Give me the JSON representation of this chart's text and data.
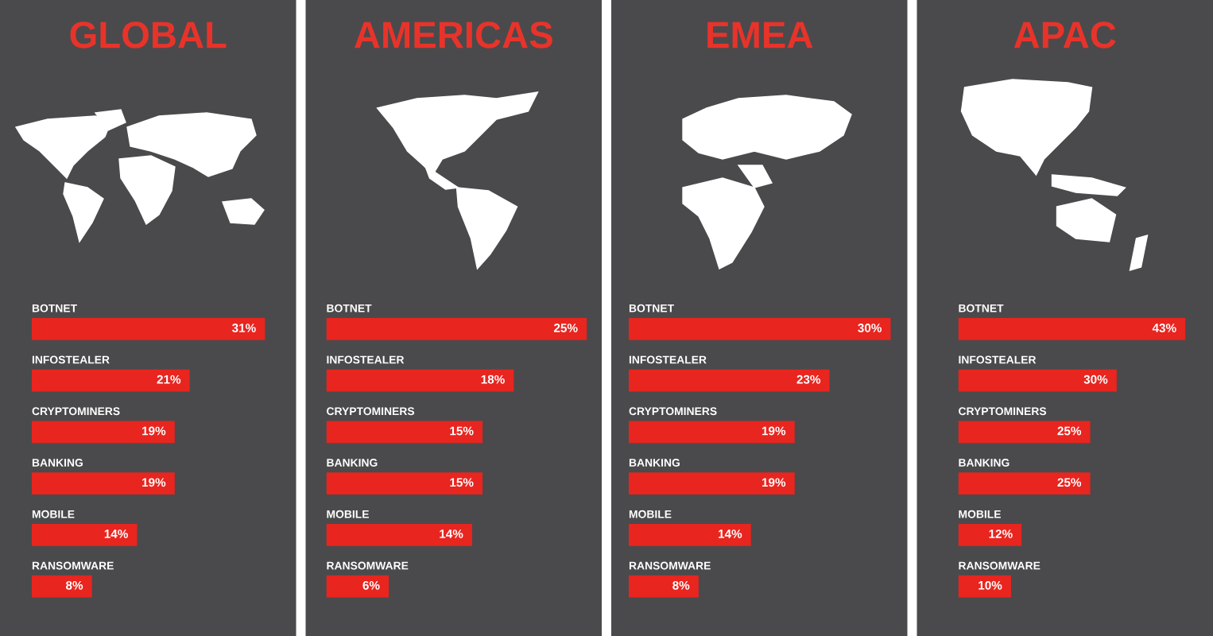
{
  "chart_data": [
    {
      "type": "bar",
      "orientation": "horizontal",
      "title": "GLOBAL",
      "categories": [
        "BOTNET",
        "INFOSTEALER",
        "CRYPTOMINERS",
        "BANKING",
        "MOBILE",
        "RANSOMWARE"
      ],
      "values": [
        31,
        21,
        19,
        19,
        14,
        8
      ],
      "value_labels": [
        "31%",
        "21%",
        "19%",
        "19%",
        "14%",
        "8%"
      ],
      "color": "#e8251f",
      "tick_labels": "y"
    },
    {
      "type": "bar",
      "orientation": "horizontal",
      "title": "AMERICAS",
      "categories": [
        "BOTNET",
        "INFOSTEALER",
        "CRYPTOMINERS",
        "BANKING",
        "MOBILE",
        "RANSOMWARE"
      ],
      "values": [
        25,
        18,
        15,
        15,
        14,
        6
      ],
      "value_labels": [
        "25%",
        "18%",
        "15%",
        "15%",
        "14%",
        "6%"
      ],
      "color": "#e8251f",
      "tick_labels": "y"
    },
    {
      "type": "bar",
      "orientation": "horizontal",
      "title": "EMEA",
      "categories": [
        "BOTNET",
        "INFOSTEALER",
        "CRYPTOMINERS",
        "BANKING",
        "MOBILE",
        "RANSOMWARE"
      ],
      "values": [
        30,
        23,
        19,
        19,
        14,
        8
      ],
      "value_labels": [
        "30%",
        "23%",
        "19%",
        "19%",
        "14%",
        "8%"
      ],
      "color": "#e8251f",
      "tick_labels": "y"
    },
    {
      "type": "bar",
      "orientation": "horizontal",
      "title": "APAC",
      "categories": [
        "BOTNET",
        "INFOSTEALER",
        "CRYPTOMINERS",
        "BANKING",
        "MOBILE",
        "RANSOMWARE"
      ],
      "values": [
        43,
        30,
        25,
        25,
        12,
        10
      ],
      "value_labels": [
        "43%",
        "30%",
        "25%",
        "25%",
        "12%",
        "10%"
      ],
      "color": "#e8251f",
      "tick_labels": "y"
    }
  ]
}
